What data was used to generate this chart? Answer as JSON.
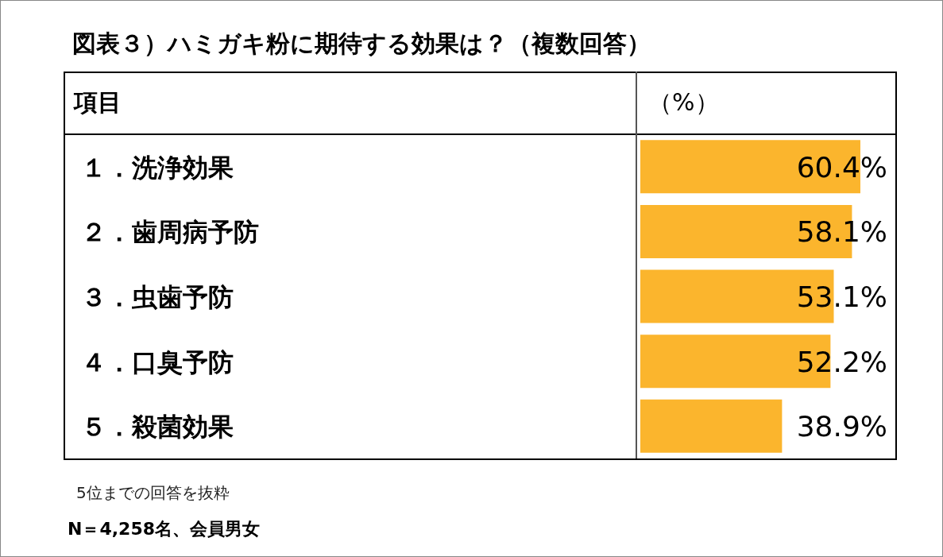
{
  "chart_data": {
    "type": "bar",
    "orientation": "horizontal",
    "title": "図表３）ハミガキ粉に期待する効果は？（複数回答）",
    "ylabel": "項目",
    "xlabel": "（%）",
    "categories": [
      "１．洗浄効果",
      "２．歯周病予防",
      "３．虫歯予防",
      "４．口臭予防",
      "５．殺菌効果"
    ],
    "values": [
      60.4,
      58.1,
      53.1,
      52.2,
      38.9
    ],
    "value_labels": [
      "60.4%",
      "58.1%",
      "53.1%",
      "52.2%",
      "38.9%"
    ],
    "color": "#fbb52d",
    "xlim": [
      0,
      70
    ],
    "annotations": [
      "5位までの回答を抜粋",
      "N＝4,258名、会員男女"
    ]
  }
}
